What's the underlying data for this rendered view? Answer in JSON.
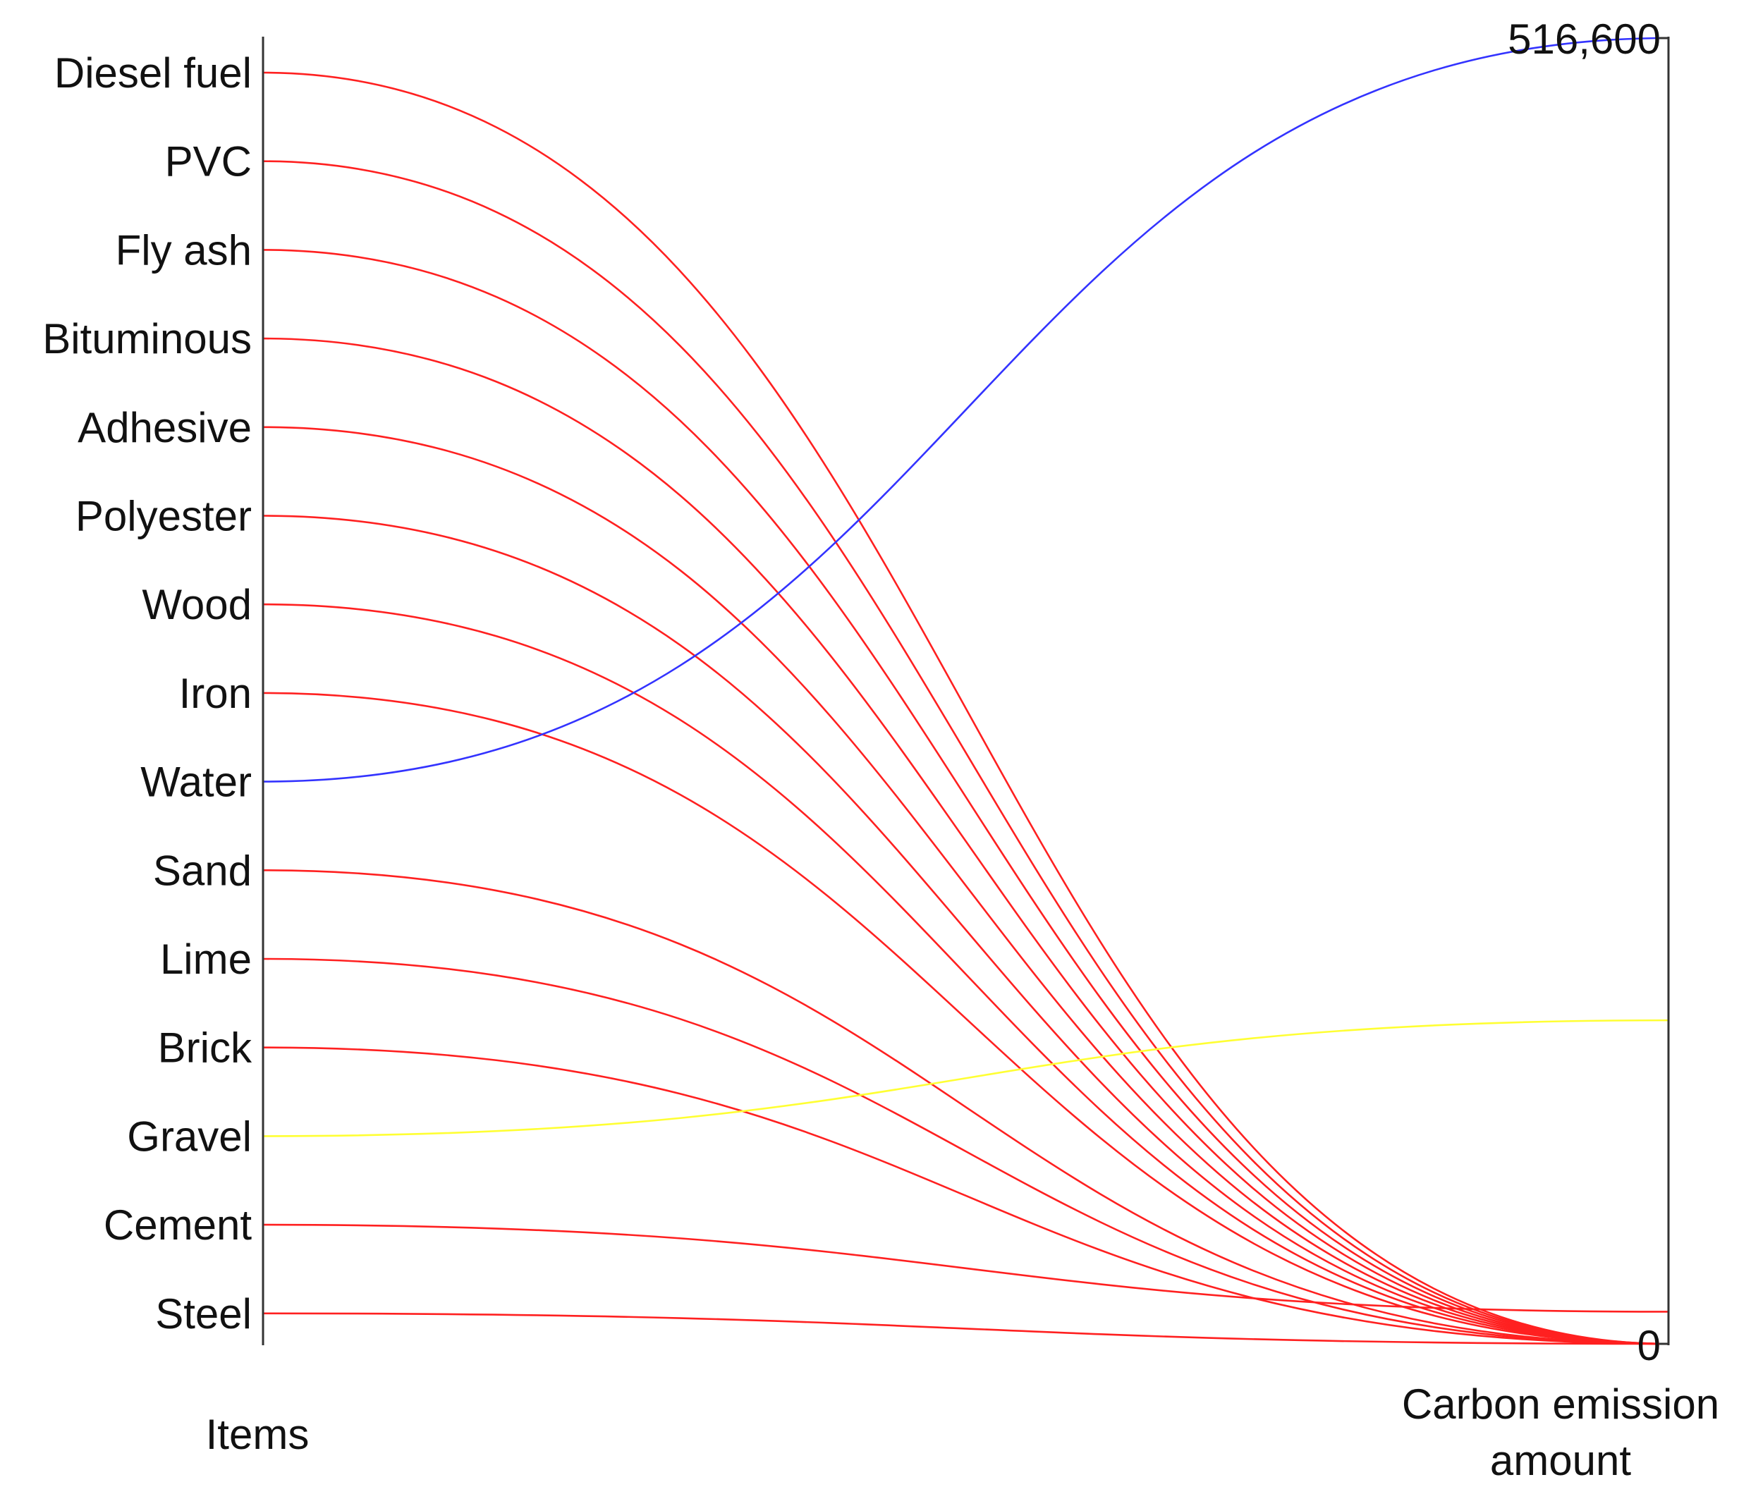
{
  "chart_data": {
    "type": "parallel-coordinates",
    "axes": [
      {
        "title": "Items",
        "categories": [
          "Diesel fuel",
          "PVC",
          "Fly ash",
          "Bituminous",
          "Adhesive",
          "Polyester",
          "Wood",
          "Iron",
          "Water",
          "Sand",
          "Lime",
          "Brick",
          "Gravel",
          "Cement",
          "Steel"
        ]
      },
      {
        "title_lines": [
          "Carbon emission",
          "amount"
        ],
        "min": 0,
        "max": 516600,
        "tick_labels": [
          "516,600",
          "0"
        ]
      }
    ],
    "series": [
      {
        "item": "Diesel fuel",
        "value": 0,
        "color": "#ff2020"
      },
      {
        "item": "PVC",
        "value": 0,
        "color": "#ff2020"
      },
      {
        "item": "Fly ash",
        "value": 0,
        "color": "#ff2020"
      },
      {
        "item": "Bituminous",
        "value": 0,
        "color": "#ff2020"
      },
      {
        "item": "Adhesive",
        "value": 0,
        "color": "#ff2020"
      },
      {
        "item": "Polyester",
        "value": 0,
        "color": "#ff2020"
      },
      {
        "item": "Wood",
        "value": 0,
        "color": "#ff2020"
      },
      {
        "item": "Iron",
        "value": 0,
        "color": "#ff2020"
      },
      {
        "item": "Water",
        "value": 516600,
        "color": "#3333ff"
      },
      {
        "item": "Sand",
        "value": 0,
        "color": "#ff2020"
      },
      {
        "item": "Lime",
        "value": 0,
        "color": "#ff2020"
      },
      {
        "item": "Brick",
        "value": 0,
        "color": "#ff2020"
      },
      {
        "item": "Gravel",
        "value": 128000,
        "color": "#ffff33"
      },
      {
        "item": "Cement",
        "value": 12700,
        "color": "#ff2020"
      },
      {
        "item": "Steel",
        "value": 0,
        "color": "#ff2020"
      }
    ],
    "grid": false,
    "legend": "none"
  }
}
